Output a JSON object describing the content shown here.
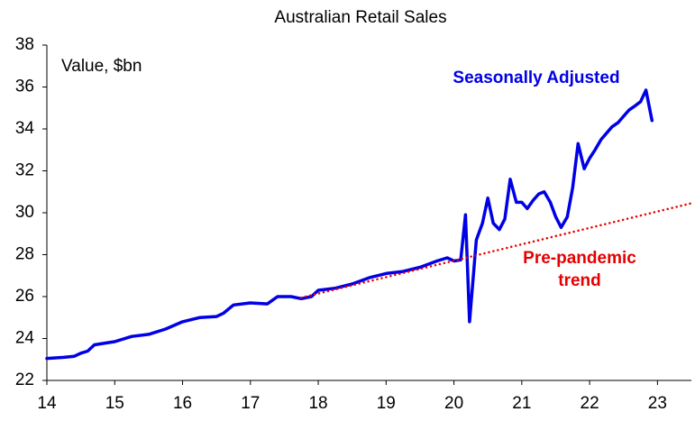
{
  "chart_data": {
    "type": "line",
    "title": "Australian Retail Sales",
    "ylabel": "Value, $bn",
    "xlim": [
      14,
      23.5
    ],
    "xticks": [
      14,
      15,
      16,
      17,
      18,
      19,
      20,
      21,
      22,
      23
    ],
    "ylim": [
      22,
      38
    ],
    "yticks": [
      22,
      24,
      26,
      28,
      30,
      32,
      34,
      36,
      38
    ],
    "grid": false,
    "series": [
      {
        "name": "Seasonally Adjusted",
        "color": "#0000e6",
        "style": "solid",
        "x": [
          14,
          14.25,
          14.4,
          14.5,
          14.6,
          14.7,
          14.9,
          15,
          15.25,
          15.5,
          15.75,
          16,
          16.25,
          16.5,
          16.6,
          16.75,
          17,
          17.25,
          17.4,
          17.6,
          17.75,
          17.9,
          18,
          18.25,
          18.5,
          18.75,
          19,
          19.25,
          19.5,
          19.75,
          19.9,
          20,
          20.1,
          20.17,
          20.23,
          20.33,
          20.42,
          20.5,
          20.58,
          20.67,
          20.75,
          20.83,
          20.92,
          21,
          21.08,
          21.17,
          21.25,
          21.33,
          21.42,
          21.5,
          21.58,
          21.67,
          21.75,
          21.83,
          21.92,
          22,
          22.08,
          22.17,
          22.25,
          22.33,
          22.42,
          22.5,
          22.58,
          22.67,
          22.75,
          22.83,
          22.92
        ],
        "values": [
          23.05,
          23.1,
          23.15,
          23.3,
          23.4,
          23.7,
          23.8,
          23.85,
          24.1,
          24.2,
          24.45,
          24.8,
          25.0,
          25.05,
          25.2,
          25.6,
          25.7,
          25.65,
          26.0,
          26.0,
          25.9,
          26.0,
          26.3,
          26.4,
          26.6,
          26.9,
          27.1,
          27.2,
          27.4,
          27.7,
          27.85,
          27.7,
          27.75,
          29.9,
          24.8,
          28.7,
          29.5,
          30.7,
          29.5,
          29.2,
          29.7,
          31.6,
          30.5,
          30.5,
          30.2,
          30.6,
          30.9,
          31.0,
          30.5,
          29.8,
          29.3,
          29.8,
          31.2,
          33.3,
          32.1,
          32.6,
          33.0,
          33.5,
          33.8,
          34.1,
          34.3,
          34.6,
          34.9,
          35.1,
          35.3,
          35.85,
          34.4
        ]
      },
      {
        "name": "Pre-pandemic trend",
        "color": "#e60000",
        "style": "dotted",
        "x": [
          17.75,
          23.5
        ],
        "values": [
          25.95,
          30.45
        ]
      }
    ]
  }
}
